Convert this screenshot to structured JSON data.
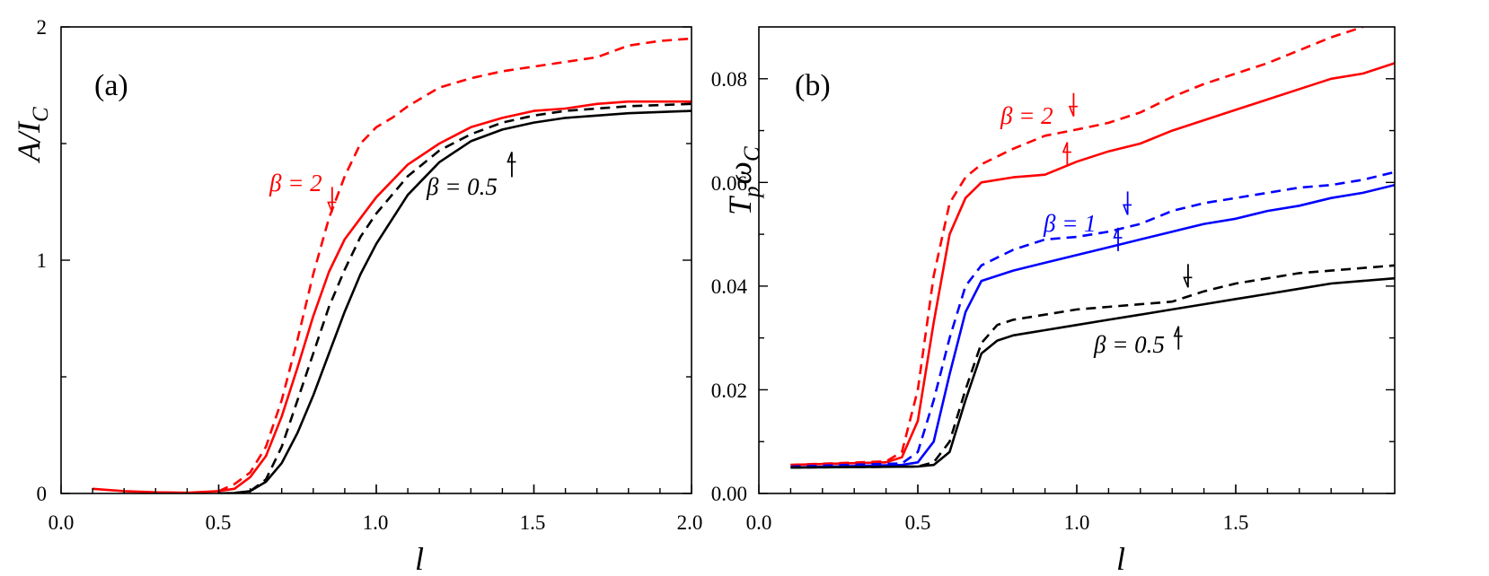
{
  "chart_data": [
    {
      "type": "line",
      "panel_label": "(a)",
      "ylabel": "A/I_C",
      "ylabel_main": "A/I",
      "ylabel_sub": "C",
      "xlabel": "l",
      "xlim": [
        0.0,
        2.0
      ],
      "ylim": [
        0,
        2
      ],
      "x_ticks": [
        "0.0",
        "0.5",
        "1.0",
        "1.5",
        "2.0"
      ],
      "x_tick_values": [
        0.0,
        0.5,
        1.0,
        1.5,
        2.0
      ],
      "y_ticks": [
        "0",
        "1",
        "2"
      ],
      "y_tick_values": [
        0,
        1,
        2
      ],
      "series": [
        {
          "name": "beta=2 dashed",
          "color": "#ff0000",
          "dash": true,
          "points": [
            [
              0.5,
              0.01
            ],
            [
              0.55,
              0.04
            ],
            [
              0.6,
              0.09
            ],
            [
              0.65,
              0.2
            ],
            [
              0.7,
              0.4
            ],
            [
              0.75,
              0.66
            ],
            [
              0.8,
              0.94
            ],
            [
              0.85,
              1.18
            ],
            [
              0.9,
              1.36
            ],
            [
              0.95,
              1.5
            ],
            [
              1.0,
              1.57
            ],
            [
              1.05,
              1.61
            ],
            [
              1.1,
              1.66
            ],
            [
              1.2,
              1.74
            ],
            [
              1.3,
              1.78
            ],
            [
              1.4,
              1.81
            ],
            [
              1.5,
              1.83
            ],
            [
              1.6,
              1.85
            ],
            [
              1.7,
              1.87
            ],
            [
              1.8,
              1.92
            ],
            [
              1.9,
              1.94
            ],
            [
              2.0,
              1.95
            ]
          ]
        },
        {
          "name": "beta=2 solid",
          "color": "#ff0000",
          "dash": false,
          "points": [
            [
              0.1,
              0.02
            ],
            [
              0.2,
              0.01
            ],
            [
              0.3,
              0.005
            ],
            [
              0.4,
              0.003
            ],
            [
              0.5,
              0.01
            ],
            [
              0.55,
              0.02
            ],
            [
              0.6,
              0.07
            ],
            [
              0.65,
              0.16
            ],
            [
              0.7,
              0.33
            ],
            [
              0.75,
              0.54
            ],
            [
              0.8,
              0.76
            ],
            [
              0.85,
              0.95
            ],
            [
              0.9,
              1.09
            ],
            [
              0.95,
              1.18
            ],
            [
              1.0,
              1.27
            ],
            [
              1.1,
              1.41
            ],
            [
              1.2,
              1.5
            ],
            [
              1.3,
              1.57
            ],
            [
              1.4,
              1.61
            ],
            [
              1.5,
              1.64
            ],
            [
              1.6,
              1.65
            ],
            [
              1.7,
              1.67
            ],
            [
              1.8,
              1.68
            ],
            [
              2.0,
              1.68
            ]
          ]
        },
        {
          "name": "beta=0.5 dashed",
          "color": "#000000",
          "dash": true,
          "points": [
            [
              0.5,
              0.0
            ],
            [
              0.55,
              0.002
            ],
            [
              0.6,
              0.01
            ],
            [
              0.65,
              0.06
            ],
            [
              0.7,
              0.2
            ],
            [
              0.75,
              0.4
            ],
            [
              0.8,
              0.6
            ],
            [
              0.85,
              0.8
            ],
            [
              0.9,
              0.96
            ],
            [
              0.95,
              1.1
            ],
            [
              1.0,
              1.2
            ],
            [
              1.1,
              1.36
            ],
            [
              1.2,
              1.47
            ],
            [
              1.3,
              1.54
            ],
            [
              1.4,
              1.59
            ],
            [
              1.5,
              1.62
            ],
            [
              1.6,
              1.64
            ],
            [
              1.7,
              1.65
            ],
            [
              1.8,
              1.66
            ],
            [
              2.0,
              1.67
            ]
          ]
        },
        {
          "name": "beta=0.5 solid",
          "color": "#000000",
          "dash": false,
          "points": [
            [
              0.5,
              0.0
            ],
            [
              0.55,
              0.002
            ],
            [
              0.6,
              0.01
            ],
            [
              0.65,
              0.05
            ],
            [
              0.7,
              0.13
            ],
            [
              0.75,
              0.26
            ],
            [
              0.8,
              0.42
            ],
            [
              0.85,
              0.6
            ],
            [
              0.9,
              0.78
            ],
            [
              0.95,
              0.94
            ],
            [
              1.0,
              1.07
            ],
            [
              1.1,
              1.28
            ],
            [
              1.2,
              1.42
            ],
            [
              1.3,
              1.51
            ],
            [
              1.4,
              1.56
            ],
            [
              1.5,
              1.59
            ],
            [
              1.6,
              1.61
            ],
            [
              1.7,
              1.62
            ],
            [
              1.8,
              1.63
            ],
            [
              2.0,
              1.64
            ]
          ]
        }
      ],
      "annotations": [
        {
          "text": "β = 2",
          "color": "#ff0000",
          "at": [
            0.69,
            1.33
          ],
          "arrow": "down",
          "arrow_at": [
            0.86,
            1.26
          ]
        },
        {
          "text": "β = 0.5",
          "color": "#000000",
          "at": [
            1.1,
            1.3
          ],
          "arrow": "up",
          "arrow_at": [
            1.43,
            1.41
          ]
        }
      ]
    },
    {
      "type": "line",
      "panel_label": "(b)",
      "ylabel": "T_p ω_C",
      "ylabel_T": "T",
      "ylabel_p": "p",
      "ylabel_w": "ω",
      "ylabel_C": "C",
      "xlabel": "l",
      "xlim": [
        0.0,
        2.0
      ],
      "ylim": [
        0.0,
        0.09
      ],
      "x_ticks": [
        "0.0",
        "0.5",
        "1.0",
        "1.5"
      ],
      "x_tick_values": [
        0.0,
        0.5,
        1.0,
        1.5
      ],
      "y_ticks": [
        "0.00",
        "0.02",
        "0.04",
        "0.06",
        "0.08"
      ],
      "y_tick_values": [
        0.0,
        0.02,
        0.04,
        0.06,
        0.08
      ],
      "series": [
        {
          "name": "beta=2 dashed",
          "color": "#ff0000",
          "dash": true,
          "points": [
            [
              0.1,
              0.0055
            ],
            [
              0.4,
              0.0062
            ],
            [
              0.45,
              0.008
            ],
            [
              0.5,
              0.02
            ],
            [
              0.55,
              0.042
            ],
            [
              0.6,
              0.056
            ],
            [
              0.65,
              0.061
            ],
            [
              0.7,
              0.0635
            ],
            [
              0.8,
              0.0665
            ],
            [
              0.9,
              0.069
            ],
            [
              1.0,
              0.0702
            ],
            [
              1.1,
              0.0715
            ],
            [
              1.2,
              0.0735
            ],
            [
              1.3,
              0.0765
            ],
            [
              1.4,
              0.079
            ],
            [
              1.5,
              0.081
            ],
            [
              1.6,
              0.083
            ],
            [
              1.7,
              0.0855
            ],
            [
              1.8,
              0.088
            ],
            [
              1.9,
              0.09
            ]
          ]
        },
        {
          "name": "beta=2 solid",
          "color": "#ff0000",
          "dash": false,
          "points": [
            [
              0.1,
              0.0055
            ],
            [
              0.4,
              0.006
            ],
            [
              0.45,
              0.007
            ],
            [
              0.5,
              0.014
            ],
            [
              0.55,
              0.033
            ],
            [
              0.6,
              0.05
            ],
            [
              0.65,
              0.057
            ],
            [
              0.7,
              0.06
            ],
            [
              0.8,
              0.061
            ],
            [
              0.9,
              0.0615
            ],
            [
              1.0,
              0.064
            ],
            [
              1.1,
              0.066
            ],
            [
              1.2,
              0.0675
            ],
            [
              1.3,
              0.07
            ],
            [
              1.4,
              0.072
            ],
            [
              1.5,
              0.074
            ],
            [
              1.6,
              0.076
            ],
            [
              1.7,
              0.078
            ],
            [
              1.8,
              0.08
            ],
            [
              1.9,
              0.081
            ],
            [
              2.0,
              0.083
            ]
          ]
        },
        {
          "name": "beta=1 dashed",
          "color": "#0000ff",
          "dash": true,
          "points": [
            [
              0.1,
              0.0052
            ],
            [
              0.45,
              0.0058
            ],
            [
              0.5,
              0.008
            ],
            [
              0.55,
              0.018
            ],
            [
              0.6,
              0.03
            ],
            [
              0.65,
              0.04
            ],
            [
              0.7,
              0.044
            ],
            [
              0.8,
              0.047
            ],
            [
              0.9,
              0.049
            ],
            [
              1.0,
              0.0495
            ],
            [
              1.1,
              0.0505
            ],
            [
              1.2,
              0.052
            ],
            [
              1.3,
              0.0545
            ],
            [
              1.4,
              0.056
            ],
            [
              1.5,
              0.057
            ],
            [
              1.6,
              0.058
            ],
            [
              1.7,
              0.059
            ],
            [
              1.8,
              0.0595
            ],
            [
              1.9,
              0.0605
            ],
            [
              2.0,
              0.062
            ]
          ]
        },
        {
          "name": "beta=1 solid",
          "color": "#0000ff",
          "dash": false,
          "points": [
            [
              0.1,
              0.005
            ],
            [
              0.45,
              0.0055
            ],
            [
              0.5,
              0.006
            ],
            [
              0.55,
              0.01
            ],
            [
              0.6,
              0.023
            ],
            [
              0.65,
              0.035
            ],
            [
              0.7,
              0.041
            ],
            [
              0.8,
              0.043
            ],
            [
              0.9,
              0.0445
            ],
            [
              1.0,
              0.046
            ],
            [
              1.1,
              0.0475
            ],
            [
              1.2,
              0.049
            ],
            [
              1.3,
              0.0505
            ],
            [
              1.4,
              0.052
            ],
            [
              1.5,
              0.053
            ],
            [
              1.6,
              0.0545
            ],
            [
              1.7,
              0.0555
            ],
            [
              1.8,
              0.057
            ],
            [
              1.9,
              0.058
            ],
            [
              2.0,
              0.0595
            ]
          ]
        },
        {
          "name": "beta=0.5 dashed",
          "color": "#000000",
          "dash": true,
          "points": [
            [
              0.1,
              0.005
            ],
            [
              0.5,
              0.0052
            ],
            [
              0.55,
              0.006
            ],
            [
              0.6,
              0.01
            ],
            [
              0.65,
              0.02
            ],
            [
              0.7,
              0.029
            ],
            [
              0.75,
              0.0325
            ],
            [
              0.8,
              0.0335
            ],
            [
              0.9,
              0.0345
            ],
            [
              1.0,
              0.0355
            ],
            [
              1.1,
              0.036
            ],
            [
              1.2,
              0.0365
            ],
            [
              1.3,
              0.037
            ],
            [
              1.4,
              0.039
            ],
            [
              1.5,
              0.0405
            ],
            [
              1.6,
              0.0415
            ],
            [
              1.7,
              0.0425
            ],
            [
              1.8,
              0.043
            ],
            [
              1.9,
              0.0435
            ],
            [
              2.0,
              0.044
            ]
          ]
        },
        {
          "name": "beta=0.5 solid",
          "color": "#000000",
          "dash": false,
          "points": [
            [
              0.1,
              0.005
            ],
            [
              0.5,
              0.0052
            ],
            [
              0.55,
              0.0055
            ],
            [
              0.6,
              0.008
            ],
            [
              0.65,
              0.018
            ],
            [
              0.7,
              0.027
            ],
            [
              0.75,
              0.0295
            ],
            [
              0.8,
              0.0305
            ],
            [
              0.9,
              0.0315
            ],
            [
              1.0,
              0.0325
            ],
            [
              1.1,
              0.0335
            ],
            [
              1.2,
              0.0345
            ],
            [
              1.3,
              0.0355
            ],
            [
              1.4,
              0.0365
            ],
            [
              1.5,
              0.0375
            ],
            [
              1.6,
              0.0385
            ],
            [
              1.7,
              0.0395
            ],
            [
              1.8,
              0.0405
            ],
            [
              1.9,
              0.041
            ],
            [
              2.0,
              0.0415
            ]
          ]
        }
      ],
      "annotations": [
        {
          "text": "β = 2",
          "color": "#ff0000",
          "at": [
            0.79,
            0.0715
          ],
          "arrow": "down",
          "arrow_at": [
            0.99,
            0.075
          ]
        },
        {
          "text": "",
          "color": "#ff0000",
          "arrow": "up",
          "arrow_at": [
            0.97,
            0.0655
          ]
        },
        {
          "text": "β = 1",
          "color": "#0000ff",
          "at": [
            0.9,
            0.051
          ],
          "arrow": "down",
          "arrow_at": [
            1.16,
            0.056
          ]
        },
        {
          "text": "",
          "color": "#0000ff",
          "arrow": "up",
          "arrow_at": [
            1.13,
            0.049
          ]
        },
        {
          "text": "β = 0.5",
          "color": "#000000",
          "at": [
            1.05,
            0.029
          ],
          "arrow": "down",
          "arrow_at": [
            1.35,
            0.042
          ]
        },
        {
          "text": "",
          "color": "#000000",
          "arrow": "up",
          "arrow_at": [
            1.32,
            0.03
          ]
        }
      ]
    }
  ]
}
